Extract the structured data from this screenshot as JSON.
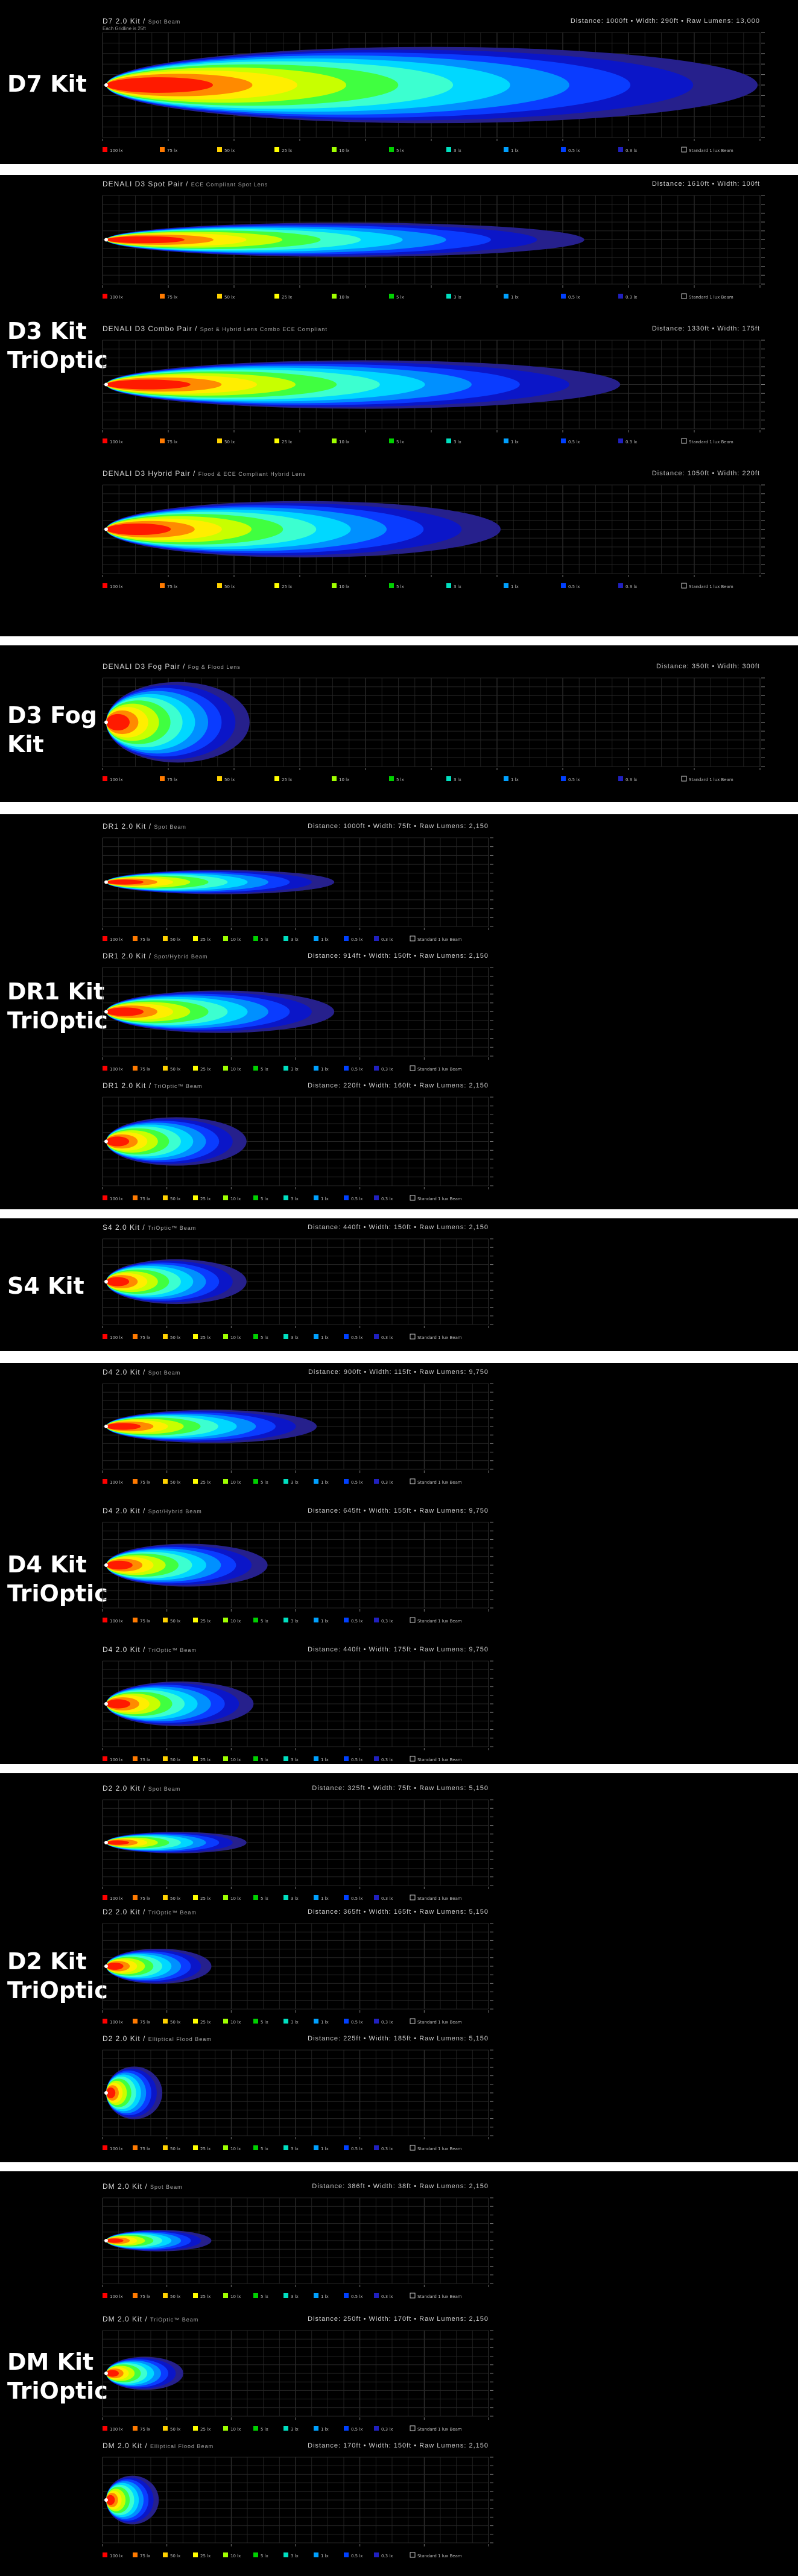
{
  "sections": [
    {
      "label": "D7 Kit",
      "panels": [
        {
          "title": "D7 2.0 Kit",
          "subtitle": "Spot Beam",
          "stats": "Distance: 1000ft  •  Width: 290ft  •  Raw Lumens: 13,000",
          "scale_note": "Each Gridline is 25ft",
          "dist": 1100,
          "w": 64
        }
      ]
    },
    {
      "label": "D3 Kit\nTriOptic",
      "panels": [
        {
          "title": "DENALI D3 Spot Pair",
          "subtitle": "ECE Compliant Spot Lens",
          "stats": "Distance: 1610ft  •  Width: 100ft",
          "scale_note": "",
          "dist": 800,
          "w": 34
        },
        {
          "title": "DENALI D3 Combo Pair",
          "subtitle": "Spot & Hybrid Lens Combo ECE Compliant",
          "stats": "Distance: 1330ft  •  Width: 175ft",
          "scale_note": "",
          "dist": 860,
          "w": 48
        },
        {
          "title": "DENALI D3 Hybrid Pair",
          "subtitle": "Flood & ECE Compliant Hybrid Lens",
          "stats": "Distance: 1050ft  •  Width: 220ft",
          "scale_note": "",
          "dist": 660,
          "w": 56
        }
      ]
    },
    {
      "label": "D3 Fog\nKit",
      "panels": [
        {
          "title": "DENALI D3 Fog Pair",
          "subtitle": "Fog & Flood Lens",
          "stats": "Distance: 350ft  •  Width: 300ft",
          "scale_note": "",
          "dist": 240,
          "w": 80
        }
      ]
    },
    {
      "label": "DR1 Kit\nTriOptic",
      "panels": [
        {
          "title": "DR1 2.0 Kit",
          "subtitle": "Spot Beam",
          "stats": "Distance: 1000ft  •  Width: 75ft  •  Raw Lumens: 2,150",
          "scale_note": "",
          "dist": 650,
          "w": 24
        },
        {
          "title": "DR1 2.0 Kit",
          "subtitle": "Spot/Hybrid Beam",
          "stats": "Distance: 914ft  •  Width: 150ft  •  Raw Lumens: 2,150",
          "scale_note": "",
          "dist": 650,
          "w": 42
        },
        {
          "title": "DR1 2.0 Kit",
          "subtitle": "TriOptic™ Beam",
          "stats": "Distance: 220ft  •  Width: 160ft  •  Raw Lumens: 2,150",
          "scale_note": "",
          "dist": 400,
          "w": 48
        }
      ]
    },
    {
      "label": "S4 Kit",
      "panels": [
        {
          "title": "S4 2.0 Kit",
          "subtitle": "TriOptic™ Beam",
          "stats": "Distance: 440ft  •  Width: 150ft  •  Raw Lumens: 2,150",
          "scale_note": "",
          "dist": 400,
          "w": 46
        }
      ]
    },
    {
      "label": "D4 Kit\nTriOptic",
      "panels": [
        {
          "title": "D4 2.0 Kit",
          "subtitle": "Spot Beam",
          "stats": "Distance: 900ft  •  Width: 115ft  •  Raw Lumens: 9,750",
          "scale_note": "",
          "dist": 600,
          "w": 34
        },
        {
          "title": "D4 2.0 Kit",
          "subtitle": "Spot/Hybrid Beam",
          "stats": "Distance: 645ft  •  Width: 155ft  •  Raw Lumens: 9,750",
          "scale_note": "",
          "dist": 460,
          "w": 44
        },
        {
          "title": "D4 2.0 Kit",
          "subtitle": "TriOptic™ Beam",
          "stats": "Distance: 440ft  •  Width: 175ft  •  Raw Lumens: 9,750",
          "scale_note": "",
          "dist": 420,
          "w": 46
        }
      ]
    },
    {
      "label": "D2 Kit\nTriOptic",
      "panels": [
        {
          "title": "D2 2.0 Kit",
          "subtitle": "Spot Beam",
          "stats": "Distance: 325ft  •  Width: 75ft  •  Raw Lumens: 5,150",
          "scale_note": "",
          "dist": 400,
          "w": 22
        },
        {
          "title": "D2 2.0 Kit",
          "subtitle": "TriOptic™ Beam",
          "stats": "Distance: 365ft  •  Width: 165ft  •  Raw Lumens: 5,150",
          "scale_note": "",
          "dist": 300,
          "w": 36
        },
        {
          "title": "D2 2.0 Kit",
          "subtitle": "Elliptical Flood Beam",
          "stats": "Distance: 225ft  •  Width: 185ft  •  Raw Lumens: 5,150",
          "scale_note": "",
          "dist": 160,
          "w": 54
        }
      ]
    },
    {
      "label": "DM Kit\nTriOptic",
      "panels": [
        {
          "title": "DM 2.0 Kit",
          "subtitle": "Spot Beam",
          "stats": "Distance: 386ft  •  Width: 38ft  •  Raw Lumens: 2,150",
          "scale_note": "",
          "dist": 300,
          "w": 22
        },
        {
          "title": "DM 2.0 Kit",
          "subtitle": "TriOptic™ Beam",
          "stats": "Distance: 250ft  •  Width: 170ft  •  Raw Lumens: 2,150",
          "scale_note": "",
          "dist": 220,
          "w": 34
        },
        {
          "title": "DM 2.0 Kit",
          "subtitle": "Elliptical Flood Beam",
          "stats": "Distance: 170ft  •  Width: 150ft  •  Raw Lumens: 2,150",
          "scale_note": "",
          "dist": 150,
          "w": 50
        }
      ]
    }
  ],
  "legend": [
    {
      "label": "100 lx",
      "color": "#ff0000"
    },
    {
      "label": "75 lx",
      "color": "#ff7a00"
    },
    {
      "label": "50 lx",
      "color": "#ffd200"
    },
    {
      "label": "25 lx",
      "color": "#ffff00"
    },
    {
      "label": "10 lx",
      "color": "#a0ff00"
    },
    {
      "label": "5 lx",
      "color": "#00d000"
    },
    {
      "label": "3 lx",
      "color": "#00e0c0"
    },
    {
      "label": "1 lx",
      "color": "#00a0ff"
    },
    {
      "label": "0.5 lx",
      "color": "#0040ff"
    },
    {
      "label": "0.3 lx",
      "color": "#2020c0"
    }
  ],
  "legend_extra": "Standard 1 lux Beam",
  "beam_colors": [
    "#26208c",
    "#0b16c8",
    "#0a3cff",
    "#0090ff",
    "#00d8ff",
    "#3cffd0",
    "#40ff40",
    "#c8ff00",
    "#ffee00",
    "#ff8a00",
    "#ff1a00"
  ]
}
